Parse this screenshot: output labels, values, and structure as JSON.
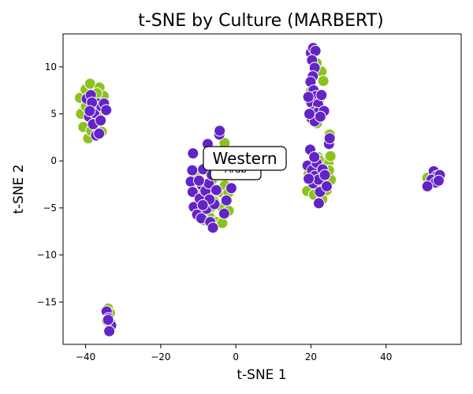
{
  "chart_data": {
    "type": "scatter",
    "title": "t-SNE by Culture (MARBERT)",
    "xlabel": "t-SNE 1",
    "ylabel": "t-SNE 2",
    "xlim": [
      -46,
      60
    ],
    "ylim": [
      -19.5,
      13.5
    ],
    "xticks": [
      -40,
      -20,
      0,
      20,
      40
    ],
    "yticks": [
      10,
      5,
      0,
      -5,
      -10,
      -15
    ],
    "xtick_labels": [
      "−40",
      "−20",
      "0",
      "20",
      "40"
    ],
    "ytick_labels": [
      "10",
      "5",
      "0",
      "−5",
      "−10",
      "−15"
    ],
    "grid": false,
    "legend": "none",
    "colors": {
      "green": "#8cc21f",
      "purple": "#6324c6"
    },
    "annotations": [
      {
        "text": "Western",
        "x": 0.0,
        "y": -0.3,
        "size": "large"
      },
      {
        "text": "Arab",
        "x": 0.0,
        "y": -0.7,
        "size": "small"
      }
    ],
    "series": [
      {
        "color": "green",
        "points": [
          [
            -41.5,
            6.7
          ],
          [
            -41.2,
            5.0
          ],
          [
            -40.6,
            3.6
          ],
          [
            -40.0,
            7.6
          ],
          [
            -39.3,
            2.4
          ],
          [
            -38.8,
            8.2
          ],
          [
            -38.1,
            6.1
          ],
          [
            -37.5,
            4.3
          ],
          [
            -36.9,
            5.5
          ],
          [
            -36.3,
            7.8
          ],
          [
            -35.7,
            3.1
          ],
          [
            -35.2,
            6.9
          ],
          [
            -39.9,
            5.8
          ],
          [
            -37.0,
            7.2
          ],
          [
            -38.5,
            3.2
          ],
          [
            -36.2,
            4.9
          ],
          [
            -34.0,
            -15.7
          ],
          [
            -33.5,
            -16.2
          ],
          [
            -34.3,
            -17.0
          ],
          [
            -33.2,
            -17.3
          ],
          [
            -11.0,
            -3.2
          ],
          [
            -10.5,
            -1.5
          ],
          [
            -9.8,
            -4.5
          ],
          [
            -9.3,
            -2.5
          ],
          [
            -8.7,
            -5.5
          ],
          [
            -8.0,
            -1.0
          ],
          [
            -7.5,
            -3.5
          ],
          [
            -6.9,
            -6.0
          ],
          [
            -6.3,
            -2.0
          ],
          [
            -5.8,
            -4.3
          ],
          [
            -5.2,
            -6.5
          ],
          [
            -4.6,
            -1.5
          ],
          [
            -4.1,
            -3.3
          ],
          [
            -3.5,
            -5.0
          ],
          [
            -2.9,
            -2.6
          ],
          [
            -2.4,
            -4.1
          ],
          [
            -1.9,
            -5.3
          ],
          [
            -1.3,
            -3.0
          ],
          [
            -6.5,
            -4.9
          ],
          [
            -3.0,
            1.9
          ],
          [
            -3.6,
            -6.6
          ],
          [
            -8.5,
            -6.3
          ],
          [
            -2.0,
            -3.4
          ],
          [
            19.0,
            -3.2
          ],
          [
            19.5,
            -0.6
          ],
          [
            20.2,
            -2.1
          ],
          [
            20.8,
            -3.6
          ],
          [
            21.3,
            -1.1
          ],
          [
            21.9,
            0.4
          ],
          [
            22.5,
            -2.6
          ],
          [
            23.0,
            -4.1
          ],
          [
            23.6,
            -1.6
          ],
          [
            24.2,
            -3.1
          ],
          [
            24.7,
            -0.1
          ],
          [
            25.3,
            -2.0
          ],
          [
            25.0,
            2.8
          ],
          [
            22.8,
            9.5
          ],
          [
            21.5,
            10.4
          ],
          [
            20.2,
            8.8
          ],
          [
            23.3,
            8.5
          ],
          [
            20.8,
            5.2
          ],
          [
            22.2,
            6.5
          ],
          [
            21.6,
            4.0
          ],
          [
            23.6,
            5.3
          ],
          [
            20.0,
            7.4
          ],
          [
            24.8,
            -1.0
          ],
          [
            19.4,
            -1.4
          ],
          [
            25.2,
            0.5
          ],
          [
            22.1,
            0.1
          ],
          [
            51.0,
            -1.8
          ],
          [
            52.5,
            -2.1
          ],
          [
            54.1,
            -1.4
          ],
          [
            53.0,
            -1.2
          ]
        ]
      },
      {
        "color": "purple",
        "points": [
          [
            -39.7,
            6.6
          ],
          [
            -39.1,
            4.7
          ],
          [
            -38.6,
            7.0
          ],
          [
            -38.0,
            3.9
          ],
          [
            -37.7,
            5.1
          ],
          [
            -37.2,
            2.7
          ],
          [
            -36.7,
            6.1
          ],
          [
            -35.8,
            5.8
          ],
          [
            -35.1,
            6.1
          ],
          [
            -34.5,
            5.4
          ],
          [
            -36.0,
            4.3
          ],
          [
            -38.3,
            6.2
          ],
          [
            -38.9,
            5.3
          ],
          [
            -36.4,
            2.9
          ],
          [
            -34.4,
            -16.0
          ],
          [
            -33.9,
            -16.7
          ],
          [
            -33.2,
            -17.5
          ],
          [
            -33.7,
            -18.1
          ],
          [
            -34.0,
            -16.9
          ],
          [
            -11.4,
            0.8
          ],
          [
            -11.6,
            -1.0
          ],
          [
            -12.0,
            -2.2
          ],
          [
            -11.5,
            -3.3
          ],
          [
            -11.2,
            -4.9
          ],
          [
            -10.3,
            -5.7
          ],
          [
            -9.6,
            -4.0
          ],
          [
            -9.2,
            -6.1
          ],
          [
            -9.0,
            -2.6
          ],
          [
            -8.7,
            -0.9
          ],
          [
            -8.1,
            -3.2
          ],
          [
            -7.8,
            -5.1
          ],
          [
            -7.5,
            1.8
          ],
          [
            -7.2,
            -2.4
          ],
          [
            -6.8,
            -6.5
          ],
          [
            -6.4,
            -1.5
          ],
          [
            -6.1,
            -7.1
          ],
          [
            -5.7,
            -4.6
          ],
          [
            -5.2,
            -3.1
          ],
          [
            -4.6,
            -0.2
          ],
          [
            -4.4,
            2.8
          ],
          [
            -4.3,
            3.2
          ],
          [
            -2.5,
            -4.2
          ],
          [
            -1.2,
            -2.9
          ],
          [
            -3.1,
            -5.6
          ],
          [
            -7.0,
            -4.1
          ],
          [
            -9.8,
            -2.1
          ],
          [
            -8.8,
            -4.7
          ],
          [
            19.1,
            -0.5
          ],
          [
            19.8,
            1.2
          ],
          [
            20.3,
            -1.0
          ],
          [
            20.6,
            -2.4
          ],
          [
            21.0,
            -1.6
          ],
          [
            21.5,
            -0.2
          ],
          [
            22.0,
            -2.0
          ],
          [
            22.4,
            -3.3
          ],
          [
            22.1,
            -4.5
          ],
          [
            23.1,
            -0.9
          ],
          [
            23.7,
            -1.5
          ],
          [
            24.2,
            -2.7
          ],
          [
            24.8,
            1.8
          ],
          [
            25.0,
            2.4
          ],
          [
            19.4,
            -1.9
          ],
          [
            20.9,
            0.4
          ],
          [
            20.0,
            11.5
          ],
          [
            20.6,
            12.0
          ],
          [
            21.2,
            11.7
          ],
          [
            20.3,
            10.7
          ],
          [
            21.0,
            9.9
          ],
          [
            20.5,
            9.0
          ],
          [
            19.9,
            8.4
          ],
          [
            20.7,
            7.5
          ],
          [
            21.4,
            6.9
          ],
          [
            20.1,
            6.2
          ],
          [
            21.9,
            6.0
          ],
          [
            20.6,
            5.2
          ],
          [
            21.6,
            5.1
          ],
          [
            20.2,
            4.5
          ],
          [
            21.0,
            4.2
          ],
          [
            22.8,
            7.0
          ],
          [
            19.3,
            6.8
          ],
          [
            23.5,
            5.3
          ],
          [
            19.6,
            5.0
          ],
          [
            22.5,
            4.7
          ]
        ]
      },
      {
        "color": "purple",
        "points": [
          [
            52.7,
            -1.1
          ],
          [
            53.5,
            -1.6
          ],
          [
            52.1,
            -2.0
          ],
          [
            54.3,
            -1.5
          ],
          [
            53.2,
            -2.3
          ],
          [
            51.0,
            -2.7
          ],
          [
            54.0,
            -2.1
          ]
        ]
      }
    ]
  }
}
